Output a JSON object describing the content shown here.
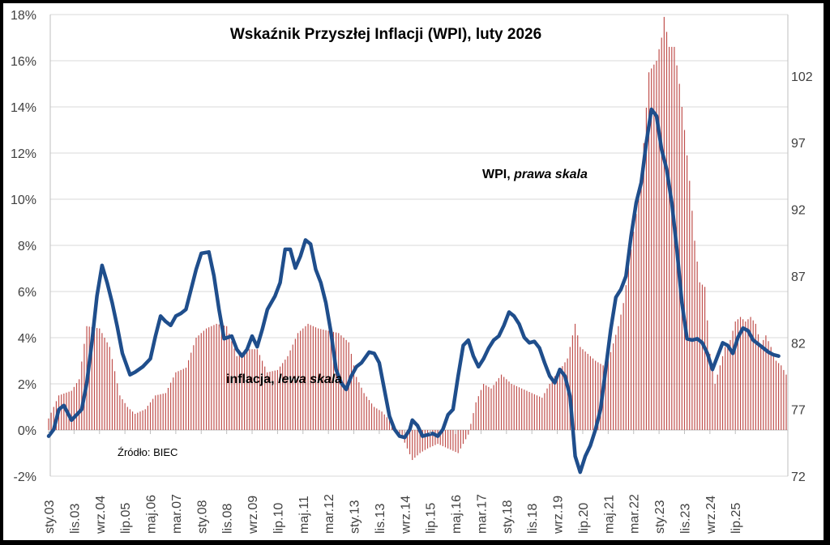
{
  "chart_data": {
    "type": "bar+line",
    "title": "Wskaźnik Przyszłej Inflacji (WPI), luty 2026",
    "source": "Źródło: BIEC",
    "annotations": {
      "wpi_label": "WPI, ",
      "wpi_label_italic": "prawa skala",
      "inflation_label": "inflacja, ",
      "inflation_label_italic": "lewa skala"
    },
    "left_axis": {
      "min": -2,
      "max": 18,
      "step": 2,
      "tick_labels": [
        "-2%",
        "0%",
        "2%",
        "4%",
        "6%",
        "8%",
        "10%",
        "12%",
        "14%",
        "16%",
        "18%"
      ]
    },
    "right_axis": {
      "min": 72,
      "max": 106.6,
      "tick_values": [
        72,
        77,
        82,
        87,
        92,
        97,
        102
      ],
      "tick_labels": [
        "72",
        "77",
        "82",
        "87",
        "92",
        "97",
        "102"
      ]
    },
    "x_axis": {
      "start": "2003-01",
      "tick_labels": [
        "sty.03",
        "lis.03",
        "wrz.04",
        "lip.05",
        "maj.06",
        "mar.07",
        "sty.08",
        "lis.08",
        "wrz.09",
        "lip.10",
        "maj.11",
        "mar.12",
        "sty.13",
        "lis.13",
        "wrz.14",
        "lip.15",
        "maj.16",
        "mar.17",
        "sty.18",
        "lis.18",
        "wrz.19",
        "lip.20",
        "maj.21",
        "mar.22",
        "sty.23",
        "lis.23",
        "wrz.24",
        "lip.25"
      ],
      "tick_month_index": [
        0,
        10,
        20,
        30,
        40,
        50,
        60,
        70,
        80,
        90,
        100,
        110,
        120,
        130,
        140,
        150,
        160,
        170,
        180,
        190,
        200,
        210,
        220,
        230,
        240,
        250,
        260,
        270
      ]
    },
    "inflation_keypoints": [
      [
        0,
        0.5
      ],
      [
        4,
        1.5
      ],
      [
        9,
        1.7
      ],
      [
        12,
        2.2
      ],
      [
        15,
        4.5
      ],
      [
        20,
        4.4
      ],
      [
        24,
        3.6
      ],
      [
        28,
        1.5
      ],
      [
        31,
        1.0
      ],
      [
        34,
        0.7
      ],
      [
        38,
        0.9
      ],
      [
        42,
        1.5
      ],
      [
        46,
        1.6
      ],
      [
        50,
        2.5
      ],
      [
        54,
        2.7
      ],
      [
        58,
        4.0
      ],
      [
        62,
        4.4
      ],
      [
        66,
        4.6
      ],
      [
        70,
        4.5
      ],
      [
        74,
        3.2
      ],
      [
        78,
        3.5
      ],
      [
        82,
        3.5
      ],
      [
        86,
        2.5
      ],
      [
        90,
        2.6
      ],
      [
        94,
        3.2
      ],
      [
        98,
        4.2
      ],
      [
        102,
        4.6
      ],
      [
        106,
        4.4
      ],
      [
        110,
        4.3
      ],
      [
        114,
        4.2
      ],
      [
        118,
        3.8
      ],
      [
        121,
        2.3
      ],
      [
        124,
        1.6
      ],
      [
        128,
        1.0
      ],
      [
        131,
        0.8
      ],
      [
        135,
        0.3
      ],
      [
        139,
        -0.3
      ],
      [
        143,
        -1.3
      ],
      [
        146,
        -1.0
      ],
      [
        149,
        -0.8
      ],
      [
        153,
        -0.6
      ],
      [
        157,
        -0.8
      ],
      [
        161,
        -1.0
      ],
      [
        165,
        -0.2
      ],
      [
        168,
        1.2
      ],
      [
        171,
        2.0
      ],
      [
        174,
        1.8
      ],
      [
        178,
        2.4
      ],
      [
        182,
        2.0
      ],
      [
        186,
        1.8
      ],
      [
        190,
        1.6
      ],
      [
        194,
        1.4
      ],
      [
        198,
        2.2
      ],
      [
        201,
        2.6
      ],
      [
        204,
        3.1
      ],
      [
        207,
        4.6
      ],
      [
        209,
        3.6
      ],
      [
        212,
        3.3
      ],
      [
        215,
        3.0
      ],
      [
        218,
        2.8
      ],
      [
        220,
        3.0
      ],
      [
        224,
        4.5
      ],
      [
        226,
        5.5
      ],
      [
        230,
        8.6
      ],
      [
        233,
        10.9
      ],
      [
        236,
        15.5
      ],
      [
        239,
        16.0
      ],
      [
        241,
        17.0
      ],
      [
        242,
        17.9
      ],
      [
        244,
        16.6
      ],
      [
        246,
        16.6
      ],
      [
        248,
        15.0
      ],
      [
        250,
        13.0
      ],
      [
        252,
        10.8
      ],
      [
        254,
        8.2
      ],
      [
        256,
        6.4
      ],
      [
        258,
        6.2
      ],
      [
        260,
        3.3
      ],
      [
        262,
        2.0
      ],
      [
        264,
        2.8
      ],
      [
        266,
        3.6
      ],
      [
        268,
        3.9
      ],
      [
        270,
        4.7
      ],
      [
        272,
        4.9
      ],
      [
        274,
        4.7
      ],
      [
        276,
        4.9
      ],
      [
        278,
        4.6
      ],
      [
        280,
        3.7
      ],
      [
        282,
        4.1
      ],
      [
        284,
        3.6
      ],
      [
        286,
        3.0
      ],
      [
        288,
        2.8
      ],
      [
        290,
        2.4
      ]
    ],
    "wpi_keypoints": [
      [
        0,
        75.0
      ],
      [
        2,
        75.5
      ],
      [
        4,
        77.0
      ],
      [
        6,
        77.3
      ],
      [
        9,
        76.2
      ],
      [
        11,
        76.6
      ],
      [
        13,
        77.0
      ],
      [
        15,
        79.0
      ],
      [
        17,
        82.0
      ],
      [
        19,
        85.5
      ],
      [
        21,
        87.8
      ],
      [
        23,
        86.5
      ],
      [
        25,
        85.0
      ],
      [
        27,
        83.2
      ],
      [
        29,
        81.2
      ],
      [
        32,
        79.6
      ],
      [
        34,
        79.8
      ],
      [
        37,
        80.2
      ],
      [
        40,
        80.8
      ],
      [
        42,
        82.5
      ],
      [
        44,
        84.0
      ],
      [
        46,
        83.6
      ],
      [
        48,
        83.3
      ],
      [
        50,
        84.0
      ],
      [
        52,
        84.2
      ],
      [
        54,
        84.5
      ],
      [
        56,
        86.0
      ],
      [
        58,
        87.5
      ],
      [
        60,
        88.7
      ],
      [
        63,
        88.8
      ],
      [
        65,
        87.0
      ],
      [
        67,
        84.5
      ],
      [
        69,
        82.3
      ],
      [
        72,
        82.5
      ],
      [
        74,
        81.5
      ],
      [
        76,
        81.0
      ],
      [
        78,
        81.5
      ],
      [
        80,
        82.5
      ],
      [
        82,
        81.7
      ],
      [
        84,
        83.0
      ],
      [
        86,
        84.5
      ],
      [
        89,
        85.5
      ],
      [
        91,
        86.5
      ],
      [
        93,
        89.0
      ],
      [
        95,
        89.0
      ],
      [
        97,
        87.6
      ],
      [
        99,
        88.5
      ],
      [
        101,
        89.7
      ],
      [
        103,
        89.4
      ],
      [
        105,
        87.5
      ],
      [
        107,
        86.5
      ],
      [
        109,
        85.0
      ],
      [
        111,
        82.8
      ],
      [
        113,
        80.0
      ],
      [
        115,
        79.0
      ],
      [
        117,
        78.5
      ],
      [
        119,
        79.5
      ],
      [
        121,
        80.2
      ],
      [
        123,
        80.5
      ],
      [
        126,
        81.3
      ],
      [
        128,
        81.2
      ],
      [
        130,
        80.5
      ],
      [
        132,
        78.5
      ],
      [
        134,
        76.5
      ],
      [
        136,
        75.5
      ],
      [
        138,
        75.0
      ],
      [
        140,
        74.9
      ],
      [
        142,
        75.5
      ],
      [
        143,
        76.2
      ],
      [
        145,
        75.8
      ],
      [
        147,
        75.0
      ],
      [
        149,
        75.1
      ],
      [
        151,
        75.2
      ],
      [
        153,
        75.0
      ],
      [
        155,
        75.5
      ],
      [
        157,
        76.6
      ],
      [
        159,
        77.0
      ],
      [
        161,
        79.5
      ],
      [
        163,
        81.8
      ],
      [
        165,
        82.2
      ],
      [
        167,
        81.0
      ],
      [
        169,
        80.2
      ],
      [
        171,
        80.8
      ],
      [
        173,
        81.6
      ],
      [
        175,
        82.2
      ],
      [
        177,
        82.5
      ],
      [
        179,
        83.3
      ],
      [
        181,
        84.3
      ],
      [
        183,
        84.0
      ],
      [
        185,
        83.4
      ],
      [
        187,
        82.4
      ],
      [
        189,
        82.0
      ],
      [
        191,
        82.1
      ],
      [
        193,
        81.6
      ],
      [
        195,
        80.5
      ],
      [
        197,
        79.5
      ],
      [
        199,
        79.0
      ],
      [
        201,
        80.0
      ],
      [
        203,
        79.5
      ],
      [
        205,
        78.0
      ],
      [
        207,
        73.5
      ],
      [
        209,
        72.3
      ],
      [
        211,
        73.5
      ],
      [
        213,
        74.3
      ],
      [
        215,
        75.5
      ],
      [
        217,
        77.0
      ],
      [
        219,
        80.0
      ],
      [
        221,
        83.0
      ],
      [
        223,
        85.4
      ],
      [
        225,
        86.0
      ],
      [
        227,
        87.0
      ],
      [
        229,
        90.0
      ],
      [
        231,
        92.5
      ],
      [
        233,
        94.0
      ],
      [
        235,
        97.0
      ],
      [
        237,
        99.5
      ],
      [
        239,
        99.0
      ],
      [
        241,
        96.5
      ],
      [
        243,
        95.0
      ],
      [
        245,
        92.5
      ],
      [
        247,
        89.0
      ],
      [
        249,
        85.0
      ],
      [
        251,
        82.3
      ],
      [
        253,
        82.2
      ],
      [
        255,
        82.3
      ],
      [
        257,
        82.0
      ],
      [
        259,
        81.2
      ],
      [
        261,
        80.0
      ],
      [
        263,
        81.0
      ],
      [
        265,
        82.0
      ],
      [
        267,
        81.8
      ],
      [
        269,
        81.2
      ],
      [
        271,
        82.4
      ],
      [
        273,
        83.1
      ],
      [
        275,
        82.9
      ],
      [
        277,
        82.2
      ],
      [
        279,
        81.9
      ],
      [
        281,
        81.6
      ],
      [
        283,
        81.3
      ],
      [
        285,
        81.1
      ],
      [
        287,
        81.0
      ]
    ],
    "colors": {
      "wpi_line": "#1f4e8c",
      "bars": "#c0504d",
      "grid": "#d9d9d9",
      "axis": "#bfbfbf",
      "frame": "#000000",
      "background": "#ffffff"
    }
  }
}
